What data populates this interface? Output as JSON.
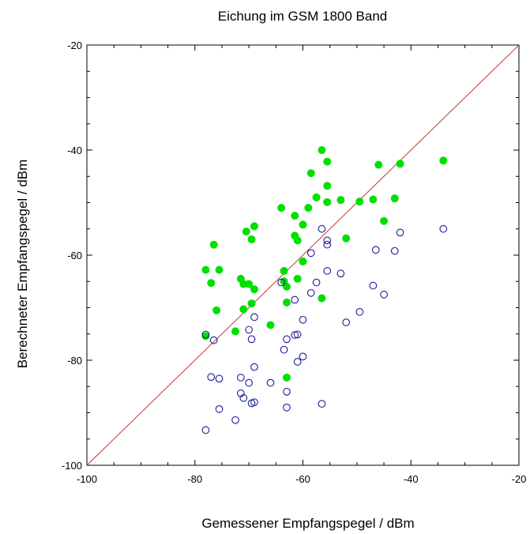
{
  "chart_data": {
    "type": "scatter",
    "title": "Eichung im GSM 1800 Band",
    "xlabel": "Gemessener Empfangspegel / dBm",
    "ylabel": "Berechneter Empfangspegel / dBm",
    "xlim": [
      -100,
      -20
    ],
    "ylim": [
      -100,
      -20
    ],
    "xticks": [
      -100,
      -80,
      -60,
      -40,
      -20
    ],
    "yticks": [
      -100,
      -80,
      -60,
      -40,
      -20
    ],
    "xtick_labels": [
      "-100",
      "-80",
      "-60",
      "-40",
      "-20"
    ],
    "ytick_labels": [
      "-100",
      "-80",
      "-60",
      "-40",
      "-20"
    ],
    "grid": false,
    "reference_line": {
      "from": [
        -100,
        -100
      ],
      "to": [
        -20,
        -20
      ],
      "color": "#c0392b"
    },
    "series": [
      {
        "marker": "filled-circle",
        "color": "#00e000",
        "points": [
          [
            -56.5,
            -40.0
          ],
          [
            -55.5,
            -42.2
          ],
          [
            -34.0,
            -42.0
          ],
          [
            -46.0,
            -42.8
          ],
          [
            -42.0,
            -42.6
          ],
          [
            -58.5,
            -44.4
          ],
          [
            -55.5,
            -46.8
          ],
          [
            -47.0,
            -49.4
          ],
          [
            -43.0,
            -49.2
          ],
          [
            -53.0,
            -49.5
          ],
          [
            -49.5,
            -49.8
          ],
          [
            -57.5,
            -49.0
          ],
          [
            -55.5,
            -49.9
          ],
          [
            -59.0,
            -51.0
          ],
          [
            -64.0,
            -51.0
          ],
          [
            -61.5,
            -52.5
          ],
          [
            -45.0,
            -53.5
          ],
          [
            -60.0,
            -54.2
          ],
          [
            -69.0,
            -54.5
          ],
          [
            -70.5,
            -55.5
          ],
          [
            -61.5,
            -56.3
          ],
          [
            -52.0,
            -56.8
          ],
          [
            -69.5,
            -57.0
          ],
          [
            -61.0,
            -57.2
          ],
          [
            -76.5,
            -58.0
          ],
          [
            -60.0,
            -61.2
          ],
          [
            -78.0,
            -62.8
          ],
          [
            -75.5,
            -62.8
          ],
          [
            -63.5,
            -63.0
          ],
          [
            -61.0,
            -64.5
          ],
          [
            -71.5,
            -64.5
          ],
          [
            -71.0,
            -65.5
          ],
          [
            -70.0,
            -65.5
          ],
          [
            -63.5,
            -65.0
          ],
          [
            -77.0,
            -65.3
          ],
          [
            -63.0,
            -66.0
          ],
          [
            -69.0,
            -66.5
          ],
          [
            -56.5,
            -68.2
          ],
          [
            -63.0,
            -69.0
          ],
          [
            -69.5,
            -69.2
          ],
          [
            -71.0,
            -70.3
          ],
          [
            -76.0,
            -70.5
          ],
          [
            -66.0,
            -73.3
          ],
          [
            -72.5,
            -74.5
          ],
          [
            -78.0,
            -75.4
          ],
          [
            -63.0,
            -83.3
          ]
        ]
      },
      {
        "marker": "hollow-circle",
        "color": "#1a1a99",
        "points": [
          [
            -34.0,
            -55.0
          ],
          [
            -56.5,
            -55.0
          ],
          [
            -42.0,
            -55.7
          ],
          [
            -55.5,
            -57.2
          ],
          [
            -55.5,
            -58.0
          ],
          [
            -46.5,
            -59.0
          ],
          [
            -43.0,
            -59.2
          ],
          [
            -58.5,
            -59.6
          ],
          [
            -55.5,
            -63.0
          ],
          [
            -53.0,
            -63.5
          ],
          [
            -57.5,
            -65.2
          ],
          [
            -64.0,
            -65.2
          ],
          [
            -47.0,
            -65.8
          ],
          [
            -45.0,
            -67.5
          ],
          [
            -58.5,
            -67.2
          ],
          [
            -61.5,
            -68.5
          ],
          [
            -49.5,
            -70.8
          ],
          [
            -69.0,
            -71.8
          ],
          [
            -60.0,
            -72.3
          ],
          [
            -52.0,
            -72.8
          ],
          [
            -70.0,
            -74.2
          ],
          [
            -61.5,
            -75.2
          ],
          [
            -61.0,
            -75.1
          ],
          [
            -78.0,
            -75.1
          ],
          [
            -63.0,
            -76.0
          ],
          [
            -76.5,
            -76.2
          ],
          [
            -69.5,
            -76.0
          ],
          [
            -63.5,
            -78.0
          ],
          [
            -60.0,
            -79.3
          ],
          [
            -61.0,
            -80.3
          ],
          [
            -69.0,
            -81.3
          ],
          [
            -77.0,
            -83.2
          ],
          [
            -75.5,
            -83.5
          ],
          [
            -71.5,
            -83.3
          ],
          [
            -70.0,
            -84.3
          ],
          [
            -66.0,
            -84.3
          ],
          [
            -63.0,
            -86.0
          ],
          [
            -71.5,
            -86.3
          ],
          [
            -71.0,
            -87.2
          ],
          [
            -69.5,
            -88.2
          ],
          [
            -69.0,
            -88.0
          ],
          [
            -56.5,
            -88.3
          ],
          [
            -63.0,
            -89.0
          ],
          [
            -75.5,
            -89.3
          ],
          [
            -72.5,
            -91.4
          ],
          [
            -78.0,
            -93.3
          ]
        ]
      }
    ]
  }
}
